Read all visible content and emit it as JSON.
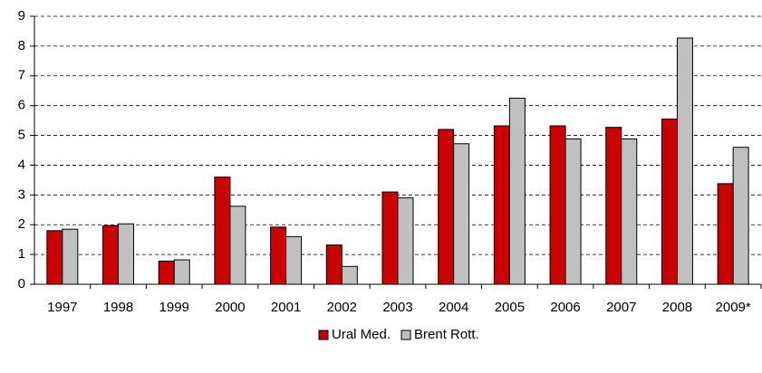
{
  "chart_data": {
    "type": "bar",
    "categories": [
      "1997",
      "1998",
      "1999",
      "2000",
      "2001",
      "2002",
      "2003",
      "2004",
      "2005",
      "2006",
      "2007",
      "2008",
      "2009*"
    ],
    "series": [
      {
        "name": "Ural Med.",
        "color": "#cc0000",
        "values": [
          1.8,
          1.97,
          0.78,
          3.6,
          1.92,
          1.32,
          3.1,
          5.2,
          5.32,
          5.32,
          5.27,
          5.55,
          3.38
        ]
      },
      {
        "name": "Brent Rott.",
        "color": "#c0c0c0",
        "values": [
          1.85,
          2.03,
          0.82,
          2.62,
          1.6,
          0.6,
          2.9,
          4.72,
          6.25,
          4.88,
          4.88,
          8.27,
          4.6
        ]
      }
    ],
    "ylim": [
      0,
      9
    ],
    "yticks": [
      0,
      1,
      2,
      3,
      4,
      5,
      6,
      7,
      8,
      9
    ],
    "grid": true,
    "legend": "bottom"
  }
}
